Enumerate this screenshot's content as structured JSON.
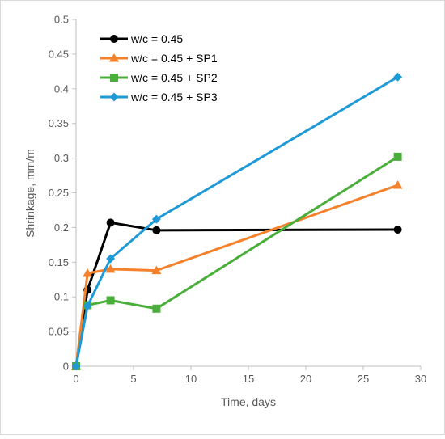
{
  "chart_data": {
    "type": "line",
    "title": "",
    "xlabel": "Time, days",
    "ylabel": "Shrinkage, mm/m",
    "xlim": [
      0,
      30
    ],
    "ylim": [
      0,
      0.5
    ],
    "xticks": [
      "0",
      "5",
      "10",
      "15",
      "20",
      "25",
      "30"
    ],
    "yticks": [
      "0",
      "0.05",
      "0.1",
      "0.15",
      "0.2",
      "0.25",
      "0.3",
      "0.35",
      "0.4",
      "0.45",
      "0.5"
    ],
    "grid": false,
    "legend_position": "top-left",
    "series": [
      {
        "name": "w/c = 0.45",
        "color": "#000000",
        "marker": "circle",
        "x": [
          0,
          1,
          3,
          7,
          28
        ],
        "y": [
          0,
          0.11,
          0.207,
          0.196,
          0.197
        ]
      },
      {
        "name": "w/c = 0.45 + SP1",
        "color": "#F4812C",
        "marker": "triangle",
        "x": [
          0,
          1,
          3,
          7,
          28
        ],
        "y": [
          0,
          0.134,
          0.14,
          0.138,
          0.261
        ]
      },
      {
        "name": "w/c = 0.45 + SP2",
        "color": "#4AAE3A",
        "marker": "square",
        "x": [
          0,
          1,
          3,
          7,
          28
        ],
        "y": [
          0,
          0.088,
          0.095,
          0.083,
          0.302
        ]
      },
      {
        "name": "w/c = 0.45 + SP3",
        "color": "#1F9AD6",
        "marker": "diamond",
        "x": [
          0,
          1,
          3,
          7,
          28
        ],
        "y": [
          0,
          0.087,
          0.155,
          0.212,
          0.417
        ]
      }
    ]
  }
}
